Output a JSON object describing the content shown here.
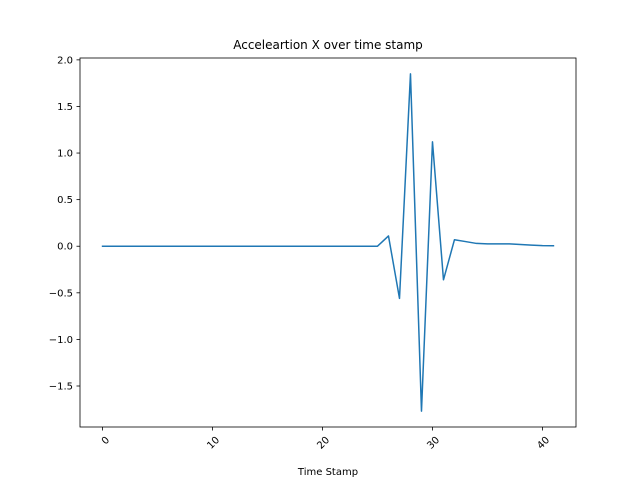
{
  "chart_data": {
    "type": "line",
    "title": "Acceleartion X over time stamp",
    "xlabel": "Time Stamp",
    "ylabel": "",
    "xlim": [
      -2.05,
      43.05
    ],
    "ylim": [
      -1.94,
      2.02
    ],
    "xticks": [
      0,
      10,
      20,
      30,
      40
    ],
    "xtick_labels": [
      "0",
      "10",
      "20",
      "30",
      "40"
    ],
    "xtick_rotation": 45,
    "yticks": [
      -1.5,
      -1.0,
      -0.5,
      0.0,
      0.5,
      1.0,
      1.5,
      2.0
    ],
    "ytick_labels": [
      "−1.5",
      "−1.0",
      "−0.5",
      "0.0",
      "0.5",
      "1.0",
      "1.5",
      "2.0"
    ],
    "grid": false,
    "series": [
      {
        "color": "#1f77b4",
        "x": [
          0,
          1,
          2,
          3,
          4,
          5,
          6,
          7,
          8,
          9,
          10,
          11,
          12,
          13,
          14,
          15,
          16,
          17,
          18,
          19,
          20,
          21,
          22,
          23,
          24,
          25,
          26,
          27,
          28,
          29,
          30,
          31,
          32,
          33,
          34,
          35,
          36,
          37,
          38,
          39,
          40,
          41
        ],
        "values": [
          0,
          0,
          0,
          0,
          0,
          0,
          0,
          0,
          0,
          0,
          0,
          0,
          0,
          0,
          0,
          0,
          0,
          0,
          0,
          0,
          0,
          0,
          0,
          0,
          0,
          0,
          0.11,
          -0.56,
          1.85,
          -1.77,
          1.12,
          -0.36,
          0.07,
          0.05,
          0.03,
          0.025,
          0.025,
          0.025,
          0.018,
          0.012,
          0.006,
          0.005
        ]
      }
    ]
  }
}
